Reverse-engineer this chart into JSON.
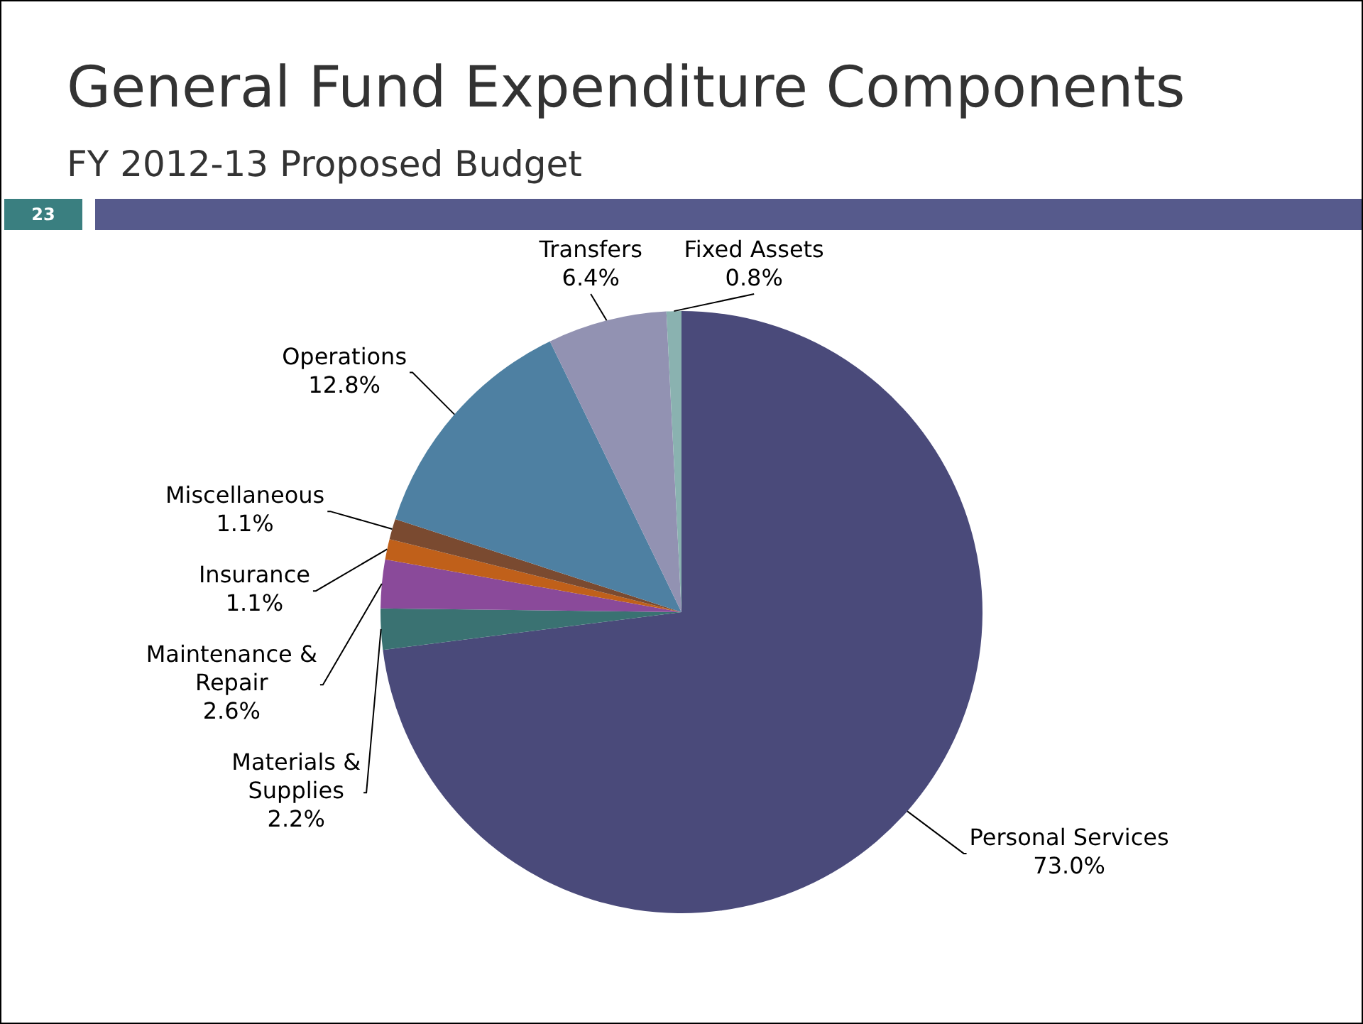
{
  "chart_data": {
    "type": "pie",
    "title": "General Fund Expenditure Components",
    "subtitle": "FY 2012-13 Proposed Budget",
    "annotations": [
      "23"
    ],
    "categories": [
      "Personal Services",
      "Materials & Supplies",
      "Maintenance & Repair",
      "Insurance",
      "Miscellaneous",
      "Operations",
      "Transfers",
      "Fixed Assets"
    ],
    "values": [
      73.0,
      2.2,
      2.6,
      1.1,
      1.1,
      12.8,
      6.4,
      0.8
    ],
    "value_labels": [
      "73.0%",
      "2.2%",
      "2.6%",
      "1.1%",
      "1.1%",
      "12.8%",
      "6.4%",
      "0.8%"
    ],
    "colors": [
      "#4a4a7a",
      "#3a7272",
      "#8a4a9a",
      "#c0601a",
      "#7a4a30",
      "#4e80a2",
      "#9292b2",
      "#8ab2b0"
    ],
    "legend": false
  }
}
